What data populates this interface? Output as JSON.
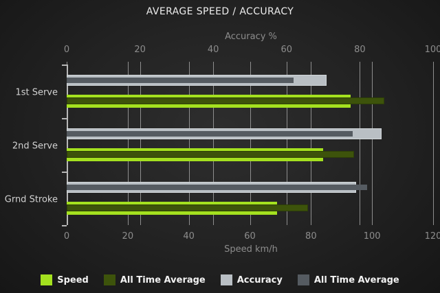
{
  "title": "AVERAGE SPEED / ACCURACY",
  "chart_data": {
    "type": "bar",
    "orientation": "horizontal",
    "title": "AVERAGE SPEED / ACCURACY",
    "categories": [
      "1st Serve",
      "2nd Serve",
      "Grnd Stroke"
    ],
    "series": [
      {
        "name": "Speed",
        "axis": "bottom",
        "color": "#a4e11f",
        "values": [
          93,
          84,
          69
        ]
      },
      {
        "name": "All Time Average",
        "axis": "bottom",
        "color": "#3d530b",
        "values": [
          104,
          94,
          79
        ]
      },
      {
        "name": "Accuracy",
        "axis": "top",
        "color": "#b9bfc4",
        "values": [
          71,
          86,
          79
        ]
      },
      {
        "name": "All Time Average",
        "axis": "top",
        "color": "#555b61",
        "values": [
          62,
          78,
          82
        ]
      }
    ],
    "axes": {
      "top": {
        "label": "Accuracy %",
        "min": 0,
        "max": 100,
        "ticks": [
          0,
          20,
          40,
          60,
          80,
          100
        ]
      },
      "bottom": {
        "label": "Speed km/h",
        "min": 0,
        "max": 120,
        "ticks": [
          0,
          20,
          40,
          60,
          80,
          100,
          120
        ]
      }
    },
    "grid": true,
    "legend_position": "bottom"
  },
  "legend": {
    "items": [
      {
        "label": "Speed",
        "color": "#a4e11f"
      },
      {
        "label": "All Time Average",
        "color": "#3d530b"
      },
      {
        "label": "Accuracy",
        "color": "#b9bfc4"
      },
      {
        "label": "All Time Average",
        "color": "#555b61"
      }
    ]
  },
  "colors": {
    "background_center": "#2e2e2e",
    "background_edge": "#161616",
    "title_text": "#ededed",
    "axis_text": "#8d8d8d",
    "category_text": "#d2d2d2",
    "gridline": "#8f8f8f",
    "axis_line": "#b8b8b8",
    "speed": "#a4e11f",
    "speed_all_time": "#3d530b",
    "accuracy": "#b9bfc4",
    "accuracy_all_time": "#555b61"
  }
}
